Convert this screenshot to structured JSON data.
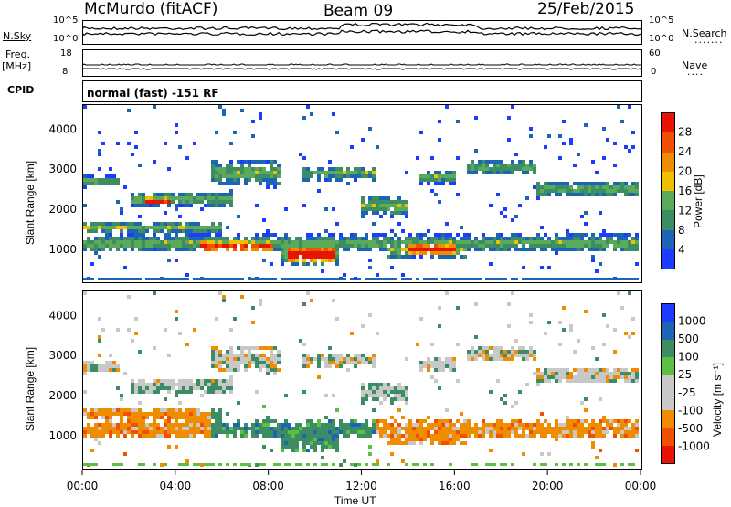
{
  "header": {
    "station": "McMurdo (fitACF)",
    "beam": "Beam 09",
    "date": "25/Feb/2015"
  },
  "noise_panel": {
    "left_label": "N.Sky",
    "right_label": "N.Search",
    "left_ticks": [
      "10^5",
      "10^0"
    ],
    "right_ticks": [
      "10^5",
      "10^0"
    ]
  },
  "freq_panel": {
    "left_label_1": "Freq.",
    "left_label_2": "[MHz]",
    "right_label": "Nave",
    "left_ticks": [
      "18",
      "8"
    ],
    "right_ticks": [
      "60",
      "0"
    ]
  },
  "cpid": {
    "label": "CPID",
    "value": "normal (fast) -151 RF"
  },
  "colors": {
    "power": [
      "#1c3cff",
      "#1c64b4",
      "#3c8c64",
      "#5aaa5a",
      "#f0c000",
      "#f08c00",
      "#f05000",
      "#e61400"
    ],
    "velocity": [
      "#e61400",
      "#f05000",
      "#f08c00",
      "#c8c8c8",
      "#c8c8c8",
      "#5ac040",
      "#3c8c64",
      "#1c64b4",
      "#1c3cff"
    ]
  },
  "chart_data": [
    {
      "type": "heatmap",
      "name": "power",
      "ylabel": "Slant Range [km]",
      "xlabel": "",
      "x_ticks": [
        "00:00",
        "04:00",
        "08:00",
        "12:00",
        "16:00",
        "20:00",
        "00:00"
      ],
      "xlim_hours": [
        0,
        24
      ],
      "y_ticks": [
        1000,
        2000,
        3000,
        4000
      ],
      "ylim": [
        180,
        4600
      ],
      "colorbar_label": "Power [dB]",
      "colorbar_ticks": [
        4,
        8,
        12,
        16,
        20,
        24,
        28
      ],
      "colorbar_range": [
        0,
        32
      ]
    },
    {
      "type": "heatmap",
      "name": "velocity",
      "ylabel": "Slant Range [km]",
      "xlabel": "Time UT",
      "x_ticks": [
        "00:00",
        "04:00",
        "08:00",
        "12:00",
        "16:00",
        "20:00",
        "00:00"
      ],
      "xlim_hours": [
        0,
        24
      ],
      "y_ticks": [
        1000,
        2000,
        3000,
        4000
      ],
      "ylim": [
        180,
        4600
      ],
      "colorbar_label": "Velocity [m s⁻¹]",
      "colorbar_ticks": [
        "1000",
        "500",
        "100",
        "25",
        "-25",
        "-100",
        "-500",
        "-1000"
      ]
    }
  ]
}
